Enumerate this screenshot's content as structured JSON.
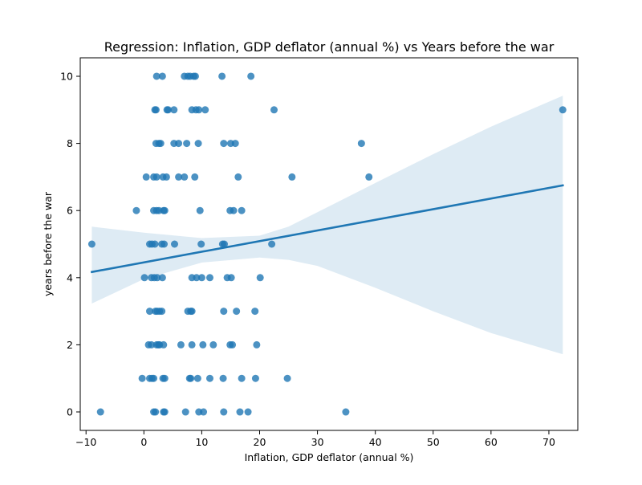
{
  "chart_data": {
    "type": "scatter",
    "title": "Regression: Inflation, GDP deflator (annual %) vs Years before the war",
    "xlabel": "Inflation, GDP deflator (annual %)",
    "ylabel": "years before the war",
    "xlim": [
      -11,
      75
    ],
    "ylim": [
      -0.55,
      10.55
    ],
    "xticks": [
      -10,
      0,
      10,
      20,
      30,
      40,
      50,
      60,
      70
    ],
    "yticks": [
      0,
      2,
      4,
      6,
      8,
      10
    ],
    "grid": false,
    "legend": "none",
    "colors": {
      "points": "#1f77b4",
      "line": "#1f77b4",
      "band": "#1f77b4"
    },
    "points": [
      [
        2.2,
        10
      ],
      [
        3.2,
        10
      ],
      [
        7.0,
        10
      ],
      [
        7.6,
        10
      ],
      [
        8.0,
        10
      ],
      [
        8.6,
        10
      ],
      [
        8.9,
        10
      ],
      [
        13.5,
        10
      ],
      [
        18.5,
        10
      ],
      [
        1.9,
        9
      ],
      [
        2.1,
        9
      ],
      [
        4.0,
        9
      ],
      [
        4.2,
        9
      ],
      [
        5.2,
        9
      ],
      [
        8.3,
        9
      ],
      [
        9.0,
        9
      ],
      [
        9.5,
        9
      ],
      [
        10.6,
        9
      ],
      [
        22.5,
        9
      ],
      [
        72.4,
        9
      ],
      [
        2.1,
        8
      ],
      [
        2.6,
        8
      ],
      [
        2.9,
        8
      ],
      [
        5.2,
        8
      ],
      [
        6.0,
        8
      ],
      [
        7.4,
        8
      ],
      [
        9.4,
        8
      ],
      [
        13.8,
        8
      ],
      [
        15.0,
        8
      ],
      [
        15.8,
        8
      ],
      [
        37.6,
        8
      ],
      [
        0.4,
        7
      ],
      [
        1.7,
        7
      ],
      [
        2.2,
        7
      ],
      [
        3.3,
        7
      ],
      [
        3.9,
        7
      ],
      [
        6.0,
        7
      ],
      [
        7.0,
        7
      ],
      [
        8.8,
        7
      ],
      [
        16.3,
        7
      ],
      [
        25.6,
        7
      ],
      [
        38.9,
        7
      ],
      [
        -1.3,
        6
      ],
      [
        1.7,
        6
      ],
      [
        2.2,
        6
      ],
      [
        2.6,
        6
      ],
      [
        3.4,
        6
      ],
      [
        3.6,
        6
      ],
      [
        9.7,
        6
      ],
      [
        14.9,
        6
      ],
      [
        15.5,
        6
      ],
      [
        16.9,
        6
      ],
      [
        -9.0,
        5
      ],
      [
        1.0,
        5
      ],
      [
        1.4,
        5
      ],
      [
        1.9,
        5
      ],
      [
        3.1,
        5
      ],
      [
        3.5,
        5
      ],
      [
        5.3,
        5
      ],
      [
        9.9,
        5
      ],
      [
        13.6,
        5
      ],
      [
        13.9,
        5
      ],
      [
        22.1,
        5
      ],
      [
        0.1,
        4
      ],
      [
        1.3,
        4
      ],
      [
        1.8,
        4
      ],
      [
        2.3,
        4
      ],
      [
        3.2,
        4
      ],
      [
        8.3,
        4
      ],
      [
        9.1,
        4
      ],
      [
        10.0,
        4
      ],
      [
        11.4,
        4
      ],
      [
        14.4,
        4
      ],
      [
        15.1,
        4
      ],
      [
        20.1,
        4
      ],
      [
        1.0,
        3
      ],
      [
        2.0,
        3
      ],
      [
        2.3,
        3
      ],
      [
        2.7,
        3
      ],
      [
        3.1,
        3
      ],
      [
        7.6,
        3
      ],
      [
        8.1,
        3
      ],
      [
        8.3,
        3
      ],
      [
        13.8,
        3
      ],
      [
        16.0,
        3
      ],
      [
        19.2,
        3
      ],
      [
        0.8,
        2
      ],
      [
        1.3,
        2
      ],
      [
        2.2,
        2
      ],
      [
        2.5,
        2
      ],
      [
        2.7,
        2
      ],
      [
        3.4,
        2
      ],
      [
        6.4,
        2
      ],
      [
        8.3,
        2
      ],
      [
        10.2,
        2
      ],
      [
        12.0,
        2
      ],
      [
        14.9,
        2
      ],
      [
        15.3,
        2
      ],
      [
        19.5,
        2
      ],
      [
        -0.3,
        1
      ],
      [
        1.0,
        1
      ],
      [
        1.4,
        1
      ],
      [
        1.7,
        1
      ],
      [
        3.3,
        1
      ],
      [
        3.6,
        1
      ],
      [
        7.9,
        1
      ],
      [
        8.1,
        1
      ],
      [
        9.3,
        1
      ],
      [
        11.4,
        1
      ],
      [
        13.7,
        1
      ],
      [
        16.9,
        1
      ],
      [
        19.3,
        1
      ],
      [
        24.8,
        1
      ],
      [
        -7.5,
        0
      ],
      [
        1.7,
        0
      ],
      [
        2.0,
        0
      ],
      [
        3.4,
        0
      ],
      [
        3.6,
        0
      ],
      [
        7.2,
        0
      ],
      [
        9.5,
        0
      ],
      [
        10.3,
        0
      ],
      [
        13.8,
        0
      ],
      [
        16.6,
        0
      ],
      [
        18.0,
        0
      ],
      [
        34.9,
        0
      ]
    ],
    "regression": {
      "x": [
        -9.0,
        72.4
      ],
      "y": [
        4.17,
        6.75
      ]
    },
    "ci_band": {
      "x": [
        -9.0,
        0,
        10,
        20,
        25,
        30,
        40,
        50,
        60,
        72.4
      ],
      "upper": [
        5.52,
        5.34,
        5.18,
        5.25,
        5.52,
        5.95,
        6.82,
        7.68,
        8.5,
        9.42
      ],
      "lower": [
        3.23,
        3.96,
        4.45,
        4.6,
        4.53,
        4.35,
        3.7,
        3.0,
        2.35,
        1.72
      ]
    }
  }
}
